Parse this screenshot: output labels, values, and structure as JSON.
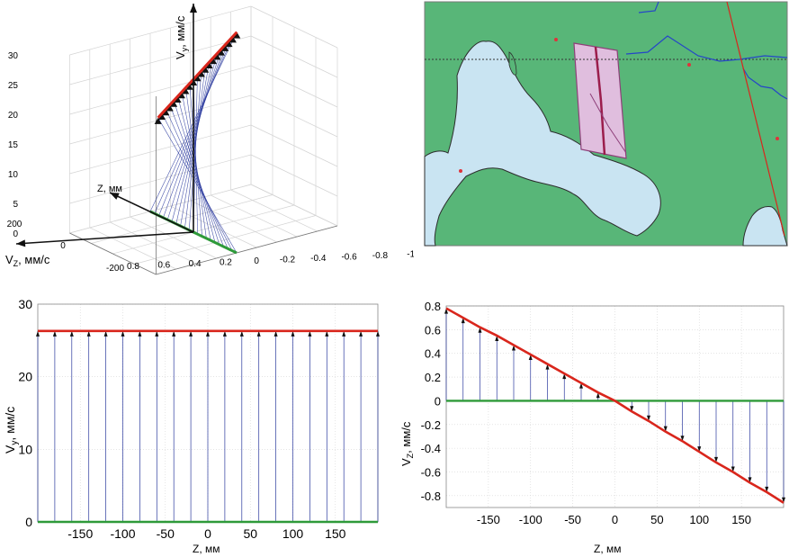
{
  "colors": {
    "red": "#d9261c",
    "green": "#2e9a39",
    "blue": "#2b3a9e",
    "grid": "#d4d4d4",
    "land": "#58b678",
    "sea": "#c9e4f2",
    "strip": "#e0bede",
    "strip_edge": "#8e3f79"
  },
  "chart_data": [
    {
      "type": "line",
      "view": "3d",
      "ylabel_main": "V",
      "ylabel_sub": "y",
      "ylabel_unit": ", мм/с",
      "xlabel_main": "V",
      "xlabel_sub": "Z",
      "xlabel_unit": ", мм/с",
      "z_axis_label": "Z, мм",
      "vy_ticks": [
        "0",
        "5",
        "10",
        "15",
        "20",
        "25",
        "30"
      ],
      "z_ticks": [
        "200",
        "0",
        "-200"
      ],
      "vz_ticks": [
        "0.8",
        "0.6",
        "0.4",
        "0.2",
        "0",
        "-0.2",
        "-0.4",
        "-0.6",
        "-0.8",
        "-1"
      ],
      "z_range": [
        -200,
        200
      ],
      "vy_range": [
        0,
        30
      ],
      "vz_range": [
        -1,
        0.8
      ],
      "grid": true,
      "n_vectors": 21,
      "vy_value": 26.3,
      "vz_at_z_min": 0.78,
      "vz_at_z_max": -0.86
    },
    {
      "type": "map",
      "view": "raster",
      "description_free": true
    },
    {
      "type": "line",
      "ylabel_main": "V",
      "ylabel_sub": "y",
      "ylabel_unit": ", мм/с",
      "xlabel": "Z, мм",
      "x_ticks": [
        "-150",
        "-100",
        "-50",
        "0",
        "50",
        "100",
        "150"
      ],
      "y_ticks": [
        "0",
        "10",
        "20",
        "30"
      ],
      "xlim": [
        -200,
        200
      ],
      "ylim": [
        0,
        30
      ],
      "grid": true,
      "x": [
        -200,
        -180,
        -160,
        -140,
        -120,
        -100,
        -80,
        -60,
        -40,
        -20,
        0,
        20,
        40,
        60,
        80,
        100,
        120,
        140,
        160,
        180,
        200
      ],
      "series": [
        {
          "values": [
            26.3,
            26.3,
            26.3,
            26.3,
            26.3,
            26.3,
            26.3,
            26.3,
            26.3,
            26.3,
            26.3,
            26.3,
            26.3,
            26.3,
            26.3,
            26.3,
            26.3,
            26.3,
            26.3,
            26.3,
            26.3
          ]
        },
        {
          "values": [
            0,
            0,
            0,
            0,
            0,
            0,
            0,
            0,
            0,
            0,
            0,
            0,
            0,
            0,
            0,
            0,
            0,
            0,
            0,
            0,
            0
          ]
        }
      ]
    },
    {
      "type": "line",
      "ylabel_main": "V",
      "ylabel_sub": "Z",
      "ylabel_unit": ", мм/с",
      "xlabel": "Z, мм",
      "x_ticks": [
        "-150",
        "-100",
        "-50",
        "0",
        "50",
        "100",
        "150"
      ],
      "y_ticks": [
        "0.8",
        "0.6",
        "0.4",
        "0.2",
        "0",
        "-0.2",
        "-0.4",
        "-0.6",
        "-0.8"
      ],
      "xlim": [
        -200,
        200
      ],
      "ylim": [
        -0.9,
        0.8
      ],
      "grid": true,
      "x": [
        -200,
        -180,
        -160,
        -140,
        -120,
        -100,
        -80,
        -60,
        -40,
        -20,
        0,
        20,
        40,
        60,
        80,
        100,
        120,
        140,
        160,
        180,
        200
      ],
      "series": [
        {
          "values": [
            0.78,
            0.7,
            0.62,
            0.55,
            0.47,
            0.39,
            0.31,
            0.23,
            0.15,
            0.07,
            0,
            -0.09,
            -0.17,
            -0.26,
            -0.34,
            -0.43,
            -0.52,
            -0.6,
            -0.69,
            -0.77,
            -0.86
          ]
        },
        {
          "values": [
            0,
            0,
            0,
            0,
            0,
            0,
            0,
            0,
            0,
            0,
            0,
            0,
            0,
            0,
            0,
            0,
            0,
            0,
            0,
            0,
            0
          ]
        }
      ]
    }
  ]
}
